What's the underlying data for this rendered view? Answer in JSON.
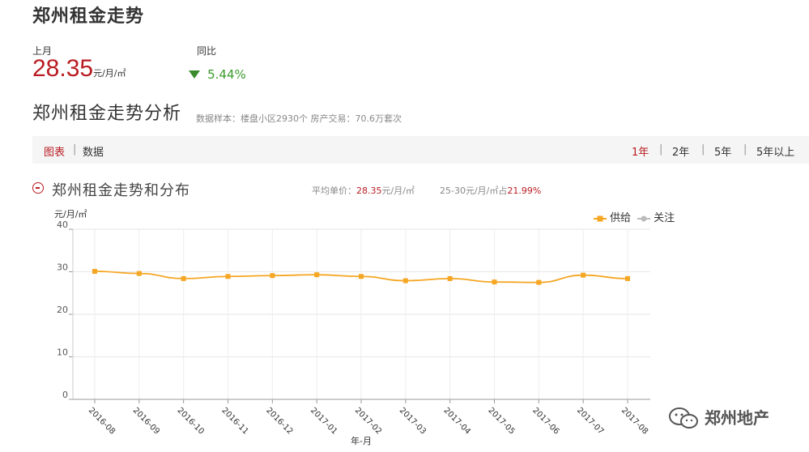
{
  "page": {
    "title": "郑州租金走势"
  },
  "stats": {
    "last_month_label": "上月",
    "last_month_price": "28.35",
    "last_month_unit": "元/月/㎡",
    "yoy_label": "同比",
    "yoy_value": "5.44%",
    "yoy_direction": "down"
  },
  "analysis": {
    "title": "郑州租金走势分析",
    "sample_text": "数据样本：楼盘小区2930个   房产交易：70.6万套次"
  },
  "tabs": {
    "left": [
      {
        "label": "图表",
        "active": true
      },
      {
        "label": "数据",
        "active": false
      }
    ],
    "right": [
      {
        "label": "1年",
        "active": true
      },
      {
        "label": "2年",
        "active": false
      },
      {
        "label": "5年",
        "active": false
      },
      {
        "label": "5年以上",
        "active": false
      }
    ],
    "separator": "|"
  },
  "chart_section": {
    "title": "郑州租金走势和分布",
    "avg_label": "平均单价：",
    "avg_value": "28.35",
    "avg_unit": "元/月/㎡",
    "range_label": "25-30元/月/㎡占",
    "range_value": "21.99%"
  },
  "chart_data": {
    "type": "line",
    "ylabel": "元/月/㎡",
    "xlabel": "年-月",
    "ylim": [
      0,
      40
    ],
    "yticks": [
      "0",
      "10",
      "20",
      "30",
      "40"
    ],
    "categories": [
      "2016-08",
      "2016-09",
      "2016-10",
      "2016-11",
      "2016-12",
      "2017-01",
      "2017-02",
      "2017-03",
      "2017-04",
      "2017-05",
      "2017-06",
      "2017-07",
      "2017-08"
    ],
    "series": [
      {
        "name": "供给",
        "color": "#f5a623",
        "values": [
          30.1,
          29.6,
          28.4,
          28.9,
          29.1,
          29.3,
          28.9,
          27.9,
          28.4,
          27.6,
          27.5,
          29.2,
          28.4
        ]
      }
    ],
    "legend": [
      {
        "name": "供给",
        "color": "#f5a623"
      },
      {
        "name": "关注",
        "color": "#bbbbbb"
      }
    ],
    "legend_position": "top-right",
    "grid": true
  },
  "watermark": {
    "text": "郑州地产",
    "icon": "wechat-icon"
  }
}
